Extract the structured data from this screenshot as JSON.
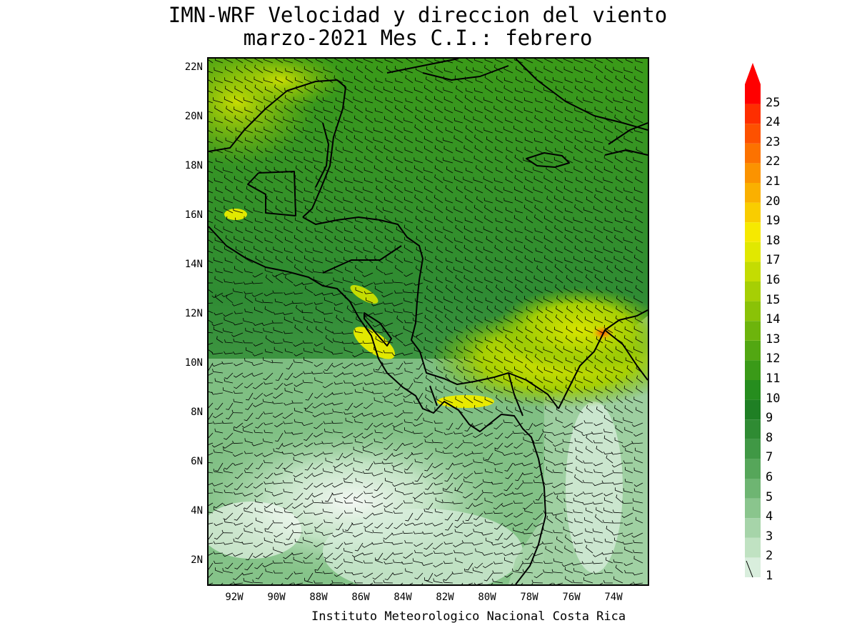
{
  "title": {
    "line1": "IMN-WRF Velocidad y direccion del viento",
    "line2": "marzo-2021 Mes C.I.: febrero"
  },
  "credit": "Instituto Meteorologico Nacional Costa Rica",
  "axes": {
    "lat_labels": [
      "22N",
      "20N",
      "18N",
      "16N",
      "14N",
      "12N",
      "10N",
      "8N",
      "6N",
      "4N",
      "2N"
    ],
    "lon_labels": [
      "92W",
      "90W",
      "88W",
      "86W",
      "84W",
      "82W",
      "80W",
      "78W",
      "76W",
      "74W"
    ]
  },
  "colorbar": {
    "levels": [
      "1",
      "2",
      "3",
      "4",
      "5",
      "6",
      "7",
      "8",
      "9",
      "10",
      "11",
      "12",
      "13",
      "14",
      "15",
      "16",
      "17",
      "18",
      "19",
      "20",
      "21",
      "22",
      "23",
      "24",
      "25"
    ],
    "colors": [
      "#d9eedd",
      "#c0e2c2",
      "#a6d4a9",
      "#8ac58d",
      "#6eb572",
      "#56a65a",
      "#409845",
      "#2f8b33",
      "#1f7f24",
      "#268d1e",
      "#3a9a18",
      "#52a712",
      "#6db40c",
      "#8ac207",
      "#a6cf04",
      "#c4dc02",
      "#e1e800",
      "#f6e900",
      "#f9cd00",
      "#fab000",
      "#fb9300",
      "#fc7200",
      "#fd5100",
      "#fe2e00",
      "#ff0000"
    ]
  },
  "map_colors": {
    "land_outline": "#000000",
    "calm_wind": "#ffffff",
    "moderate_wind": "#2e8b2e",
    "strong_wind": "#f0e600",
    "max_wind": "#ff3300"
  }
}
